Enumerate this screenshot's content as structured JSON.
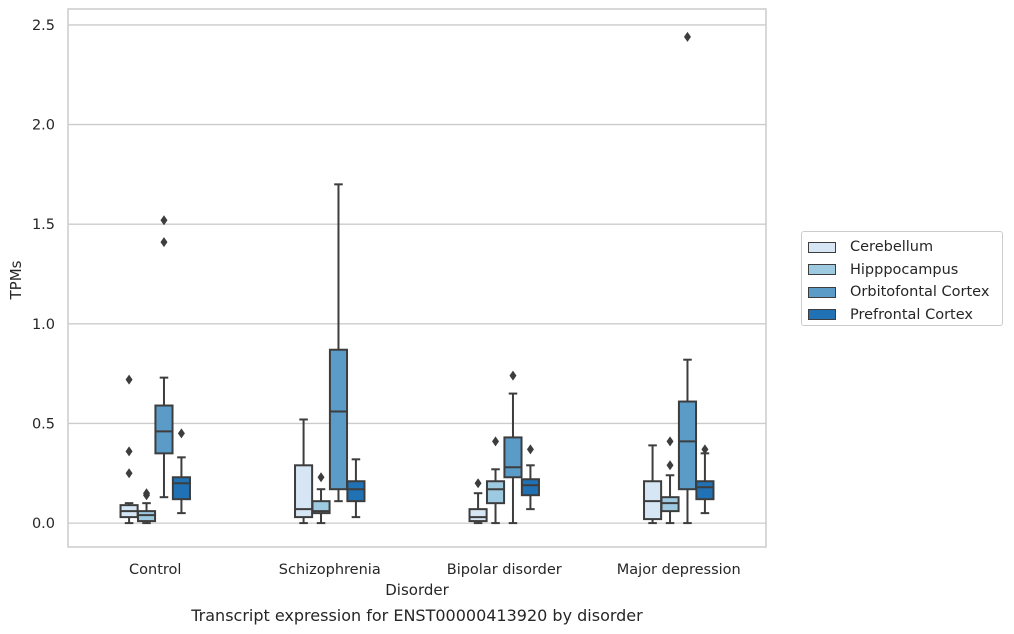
{
  "chart_data": {
    "type": "box",
    "ylabel": "TPMs",
    "xlabel": "Disorder",
    "ylim": [
      -0.12,
      2.58
    ],
    "yticks": [
      "0.0",
      "0.5",
      "1.0",
      "1.5",
      "2.0",
      "2.5"
    ],
    "grid": true,
    "legend_position": "right",
    "categories": [
      "Control",
      "Schizophrenia",
      "Bipolar disorder",
      "Major depression"
    ],
    "series": [
      {
        "name": "Cerebellum",
        "color": "#d6e6f4",
        "boxes": [
          {
            "whisker_low": 0.0,
            "q1": 0.03,
            "median": 0.06,
            "q3": 0.09,
            "whisker_high": 0.1,
            "outliers": [
              0.25,
              0.36,
              0.72
            ]
          },
          {
            "whisker_low": 0.0,
            "q1": 0.03,
            "median": 0.07,
            "q3": 0.29,
            "whisker_high": 0.52,
            "outliers": []
          },
          {
            "whisker_low": 0.0,
            "q1": 0.01,
            "median": 0.03,
            "q3": 0.07,
            "whisker_high": 0.15,
            "outliers": [
              0.2
            ]
          },
          {
            "whisker_low": 0.0,
            "q1": 0.02,
            "median": 0.11,
            "q3": 0.21,
            "whisker_high": 0.39,
            "outliers": []
          }
        ]
      },
      {
        "name": "Hipppocampus",
        "color": "#9ecae1",
        "boxes": [
          {
            "whisker_low": 0.0,
            "q1": 0.01,
            "median": 0.04,
            "q3": 0.06,
            "whisker_high": 0.1,
            "outliers": [
              0.14,
              0.15
            ]
          },
          {
            "whisker_low": 0.0,
            "q1": 0.05,
            "median": 0.06,
            "q3": 0.11,
            "whisker_high": 0.17,
            "outliers": [
              0.23
            ]
          },
          {
            "whisker_low": 0.0,
            "q1": 0.1,
            "median": 0.17,
            "q3": 0.21,
            "whisker_high": 0.27,
            "outliers": [
              0.41
            ]
          },
          {
            "whisker_low": 0.0,
            "q1": 0.06,
            "median": 0.1,
            "q3": 0.13,
            "whisker_high": 0.24,
            "outliers": [
              0.29,
              0.41
            ]
          }
        ]
      },
      {
        "name": "Orbitofontal Cortex",
        "color": "#5a9bc8",
        "boxes": [
          {
            "whisker_low": 0.13,
            "q1": 0.35,
            "median": 0.46,
            "q3": 0.59,
            "whisker_high": 0.73,
            "outliers": [
              1.41,
              1.52
            ]
          },
          {
            "whisker_low": 0.11,
            "q1": 0.17,
            "median": 0.56,
            "q3": 0.87,
            "whisker_high": 1.7,
            "outliers": []
          },
          {
            "whisker_low": 0.0,
            "q1": 0.23,
            "median": 0.28,
            "q3": 0.43,
            "whisker_high": 0.65,
            "outliers": [
              0.74
            ]
          },
          {
            "whisker_low": 0.0,
            "q1": 0.17,
            "median": 0.41,
            "q3": 0.61,
            "whisker_high": 0.82,
            "outliers": [
              2.44
            ]
          }
        ]
      },
      {
        "name": "Prefrontal Cortex",
        "color": "#2171b5",
        "boxes": [
          {
            "whisker_low": 0.05,
            "q1": 0.12,
            "median": 0.2,
            "q3": 0.23,
            "whisker_high": 0.33,
            "outliers": [
              0.45
            ]
          },
          {
            "whisker_low": 0.03,
            "q1": 0.11,
            "median": 0.17,
            "q3": 0.21,
            "whisker_high": 0.32,
            "outliers": []
          },
          {
            "whisker_low": 0.07,
            "q1": 0.14,
            "median": 0.19,
            "q3": 0.22,
            "whisker_high": 0.29,
            "outliers": [
              0.37
            ]
          },
          {
            "whisker_low": 0.05,
            "q1": 0.12,
            "median": 0.18,
            "q3": 0.21,
            "whisker_high": 0.35,
            "outliers": [
              0.37
            ]
          }
        ]
      }
    ]
  },
  "caption": "Transcript expression for ENST00000413920 by disorder"
}
